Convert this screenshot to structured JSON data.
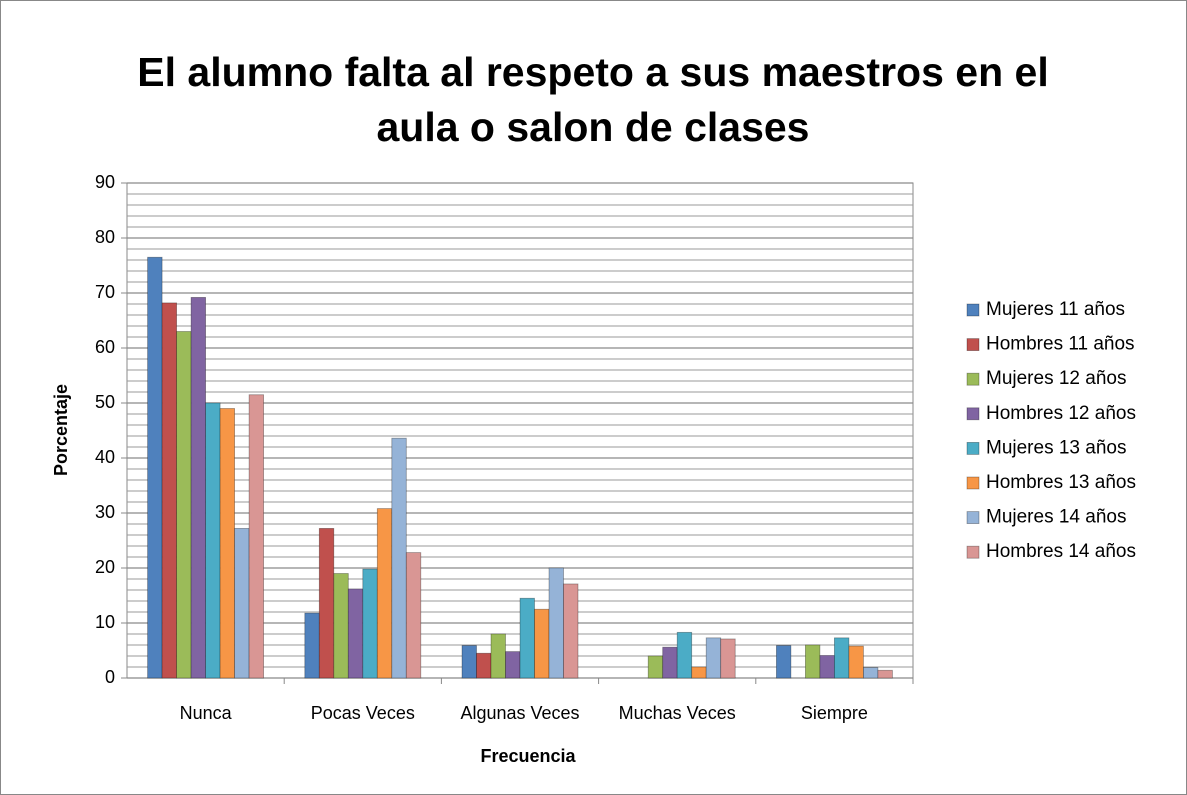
{
  "chart_data": {
    "type": "bar",
    "title": [
      "El alumno falta al respeto a sus maestros en el",
      "aula o salon de clases"
    ],
    "x_label": "Frecuencia",
    "y_label": "Porcentaje",
    "categories": [
      "Nunca",
      "Pocas Veces",
      "Algunas Veces",
      "Muchas Veces",
      "Siempre"
    ],
    "series": [
      {
        "name": "Mujeres 11 años",
        "color": "#4f81bd",
        "values": [
          76.5,
          11.8,
          5.9,
          0,
          5.9
        ]
      },
      {
        "name": "Hombres 11 años",
        "color": "#c0504d",
        "values": [
          68.2,
          27.2,
          4.5,
          0,
          0
        ]
      },
      {
        "name": "Mujeres 12 años",
        "color": "#9bbb59",
        "values": [
          63,
          19,
          8,
          4,
          6
        ]
      },
      {
        "name": "Hombres 12 años",
        "color": "#8064a2",
        "values": [
          69.2,
          16.2,
          4.8,
          5.6,
          4.1
        ]
      },
      {
        "name": "Mujeres 13 años",
        "color": "#4bacc6",
        "values": [
          50,
          19.8,
          14.5,
          8.3,
          7.3
        ]
      },
      {
        "name": "Hombres 13 años",
        "color": "#f79646",
        "values": [
          49,
          30.8,
          12.5,
          2,
          5.8
        ]
      },
      {
        "name": "Mujeres 14 años",
        "color": "#95b3d7",
        "values": [
          27.2,
          43.6,
          20,
          7.3,
          1.9
        ]
      },
      {
        "name": "Hombres 14 años",
        "color": "#d99694",
        "values": [
          51.5,
          22.8,
          17.1,
          7.1,
          1.4
        ]
      }
    ],
    "ylim": [
      0,
      90
    ],
    "yticks": [
      0,
      10,
      20,
      30,
      40,
      50,
      60,
      70,
      80,
      90
    ],
    "yminorticks": [
      2,
      4,
      6,
      8,
      12,
      14,
      16,
      18,
      22,
      24,
      26,
      28,
      32,
      34,
      36,
      38,
      42,
      44,
      46,
      48,
      52,
      54,
      56,
      58,
      62,
      64,
      66,
      68,
      72,
      74,
      76,
      78,
      82,
      84,
      86,
      88
    ],
    "grid": true,
    "legend": "right"
  }
}
